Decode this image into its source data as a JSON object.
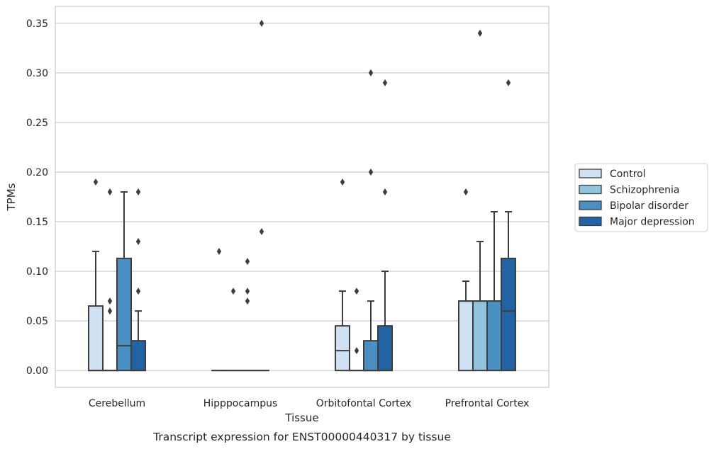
{
  "chart_data": {
    "type": "box",
    "xlabel": "Tissue",
    "ylabel": "TPMs",
    "caption": "Transcript expression for ENST00000440317 by tissue",
    "ylim": [
      -0.017,
      0.367
    ],
    "yticks": [
      "0.00",
      "0.05",
      "0.10",
      "0.15",
      "0.20",
      "0.25",
      "0.30",
      "0.35"
    ],
    "grid": "horizontal",
    "legend_position": "right",
    "categories": [
      "Cerebellum",
      "Hipppocampus",
      "Orbitofontal Cortex",
      "Prefrontal Cortex"
    ],
    "series": [
      {
        "name": "Control",
        "color": "#cfe1f2",
        "boxes": [
          {
            "q1": 0,
            "median": 0,
            "q3": 0.065,
            "whisker_low": 0,
            "whisker_high": 0.12,
            "outliers": [
              0.19
            ]
          },
          {
            "q1": 0,
            "median": 0,
            "q3": 0,
            "whisker_low": 0,
            "whisker_high": 0,
            "outliers": [
              0.12
            ]
          },
          {
            "q1": 0,
            "median": 0.02,
            "q3": 0.045,
            "whisker_low": 0,
            "whisker_high": 0.08,
            "outliers": [
              0.19
            ]
          },
          {
            "q1": 0,
            "median": 0.07,
            "q3": 0.07,
            "whisker_low": 0,
            "whisker_high": 0.09,
            "outliers": [
              0.18
            ]
          }
        ]
      },
      {
        "name": "Schizophrenia",
        "color": "#93c4de",
        "boxes": [
          {
            "q1": 0,
            "median": 0,
            "q3": 0,
            "whisker_low": 0,
            "whisker_high": 0,
            "outliers": [
              0.06,
              0.07,
              0.18
            ]
          },
          {
            "q1": 0,
            "median": 0,
            "q3": 0,
            "whisker_low": 0,
            "whisker_high": 0,
            "outliers": [
              0.08
            ]
          },
          {
            "q1": 0,
            "median": 0,
            "q3": 0,
            "whisker_low": 0,
            "whisker_high": 0,
            "outliers": [
              0.02,
              0.08
            ]
          },
          {
            "q1": 0,
            "median": 0.07,
            "q3": 0.07,
            "whisker_low": 0,
            "whisker_high": 0.13,
            "outliers": [
              0.34
            ]
          }
        ]
      },
      {
        "name": "Bipolar disorder",
        "color": "#4a8fc1",
        "boxes": [
          {
            "q1": 0,
            "median": 0.025,
            "q3": 0.113,
            "whisker_low": 0,
            "whisker_high": 0.18,
            "outliers": []
          },
          {
            "q1": 0,
            "median": 0,
            "q3": 0,
            "whisker_low": 0,
            "whisker_high": 0,
            "outliers": [
              0.07,
              0.08,
              0.11
            ]
          },
          {
            "q1": 0,
            "median": 0,
            "q3": 0.03,
            "whisker_low": 0,
            "whisker_high": 0.07,
            "outliers": [
              0.2,
              0.3
            ]
          },
          {
            "q1": 0,
            "median": 0.07,
            "q3": 0.07,
            "whisker_low": 0,
            "whisker_high": 0.16,
            "outliers": []
          }
        ]
      },
      {
        "name": "Major depression",
        "color": "#2463a3",
        "boxes": [
          {
            "q1": 0,
            "median": 0,
            "q3": 0.03,
            "whisker_low": 0,
            "whisker_high": 0.06,
            "outliers": [
              0.08,
              0.13,
              0.18
            ]
          },
          {
            "q1": 0,
            "median": 0,
            "q3": 0,
            "whisker_low": 0,
            "whisker_high": 0,
            "outliers": [
              0.14,
              0.35
            ]
          },
          {
            "q1": 0,
            "median": 0,
            "q3": 0.045,
            "whisker_low": 0,
            "whisker_high": 0.1,
            "outliers": [
              0.18,
              0.29
            ]
          },
          {
            "q1": 0,
            "median": 0.06,
            "q3": 0.113,
            "whisker_low": 0,
            "whisker_high": 0.16,
            "outliers": [
              0.29
            ]
          }
        ]
      }
    ]
  }
}
